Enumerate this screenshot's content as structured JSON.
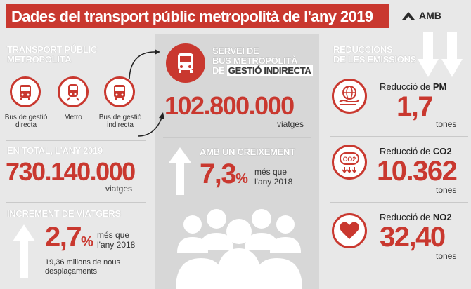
{
  "header": {
    "title": "Dades del transport públic metropolità de l'any 2019",
    "logo_text": "AMB"
  },
  "left": {
    "section_title": [
      "TRANSPORT PÚBLIC",
      "METROPOLITÀ"
    ],
    "modes": [
      {
        "label": [
          "Bus de gestió",
          "directa"
        ],
        "icon": "bus-icon"
      },
      {
        "label": [
          "Metro"
        ],
        "icon": "train-icon"
      },
      {
        "label": [
          "Bus de gestió",
          "indirecta"
        ],
        "icon": "bus-icon"
      }
    ],
    "total_title": "EN TOTAL, L'ANY 2019",
    "total_value": "730.140.000",
    "total_unit": "viatges",
    "increment_title": "INCREMENT DE VIATGERS",
    "increment_value": "2,7",
    "increment_pct": "%",
    "increment_note": [
      "més que",
      "l'any 2018"
    ],
    "increment_sub": [
      "19,36 milions de nous",
      "desplaçaments"
    ]
  },
  "middle": {
    "title_lines": [
      "SERVEI DE",
      "BUS METROPOLITÀ",
      "DE "
    ],
    "title_highlight": "GESTIÓ INDIRECTA",
    "value": "102.800.000",
    "unit": "viatges",
    "growth_title": "AMB UN CREIXEMENT",
    "growth_value": "7,3",
    "growth_pct": "%",
    "growth_note": [
      "més que",
      "l'any 2018"
    ]
  },
  "right": {
    "section_title": [
      "REDUCCIONS",
      "DE LES EMISSIONS"
    ],
    "items": [
      {
        "label": "Reducció de ",
        "gas": "PM",
        "value": "1,7",
        "unit": "tones",
        "icon": "globe-hand-icon"
      },
      {
        "label": "Reducció de ",
        "gas": "CO2",
        "value": "10.362",
        "unit": "tones",
        "icon": "co2-icon"
      },
      {
        "label": "Reducció de ",
        "gas": "NO2",
        "value": "32,40",
        "unit": "tones",
        "icon": "heart-icon"
      }
    ]
  },
  "colors": {
    "accent": "#c9382f",
    "panel": "#d7d7d7",
    "bg": "#e8e8e8"
  }
}
